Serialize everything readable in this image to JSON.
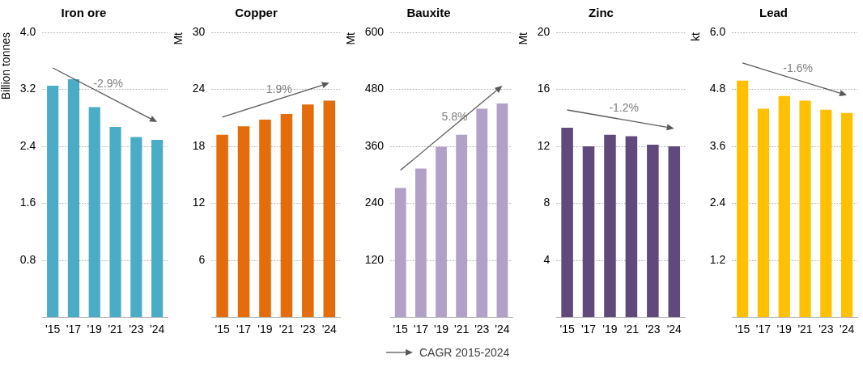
{
  "chart_data": [
    {
      "type": "bar",
      "title": "Iron ore",
      "ylabel": "Billion tonnes",
      "categories": [
        "'15",
        "'17",
        "'19",
        "'21",
        "'23",
        "'24"
      ],
      "values": [
        3.25,
        3.34,
        2.95,
        2.67,
        2.53,
        2.49
      ],
      "color": "#4bacc6",
      "ylim": [
        0,
        4
      ],
      "yticks": [
        0.8,
        1.6,
        2.4,
        3.2,
        {
          "value": 4,
          "label": "4.0"
        }
      ],
      "grid": "y",
      "annotations": [
        "-2.9%"
      ]
    },
    {
      "type": "bar",
      "title": "Copper",
      "ylabel": "Mt",
      "categories": [
        "'15",
        "'17",
        "'19",
        "'21",
        "'23",
        "'24"
      ],
      "values": [
        19.2,
        20.1,
        20.8,
        21.4,
        22.4,
        22.8
      ],
      "color": "#e46c0a",
      "ylim": [
        0,
        30
      ],
      "yticks": [
        6,
        12,
        18,
        24,
        30
      ],
      "grid": "y",
      "annotations": [
        "1.9%"
      ]
    },
    {
      "type": "bar",
      "title": "Bauxite",
      "ylabel": "Mt",
      "categories": [
        "'15",
        "'17",
        "'19",
        "'21",
        "'23",
        "'24"
      ],
      "values": [
        272,
        313,
        359,
        384,
        439,
        450
      ],
      "color": "#b2a1c7",
      "ylim": [
        0,
        600
      ],
      "yticks": [
        120,
        240,
        360,
        480,
        600
      ],
      "grid": "y",
      "annotations": [
        "5.8%",
        "CAGR 2015-2024"
      ]
    },
    {
      "type": "bar",
      "title": "Zinc",
      "ylabel": "Mt",
      "categories": [
        "'15",
        "'17",
        "'19",
        "'21",
        "'23",
        "'24"
      ],
      "values": [
        13.3,
        12.0,
        12.8,
        12.7,
        12.1,
        12.0
      ],
      "color": "#604a7b",
      "ylim": [
        0,
        20
      ],
      "yticks": [
        4,
        8,
        12,
        16,
        20
      ],
      "grid": "y",
      "annotations": [
        "-1.2%"
      ]
    },
    {
      "type": "bar",
      "title": "Lead",
      "ylabel": "kt",
      "categories": [
        "'15",
        "'17",
        "'19",
        "'21",
        "'23",
        "'24"
      ],
      "values": [
        4.98,
        4.39,
        4.66,
        4.56,
        4.37,
        4.3
      ],
      "color": "#ffc000",
      "ylim": [
        0,
        6
      ],
      "yticks": [
        1.2,
        2.4,
        3.6,
        4.8,
        {
          "value": 6,
          "label": "6.0"
        }
      ],
      "grid": "y",
      "annotations": [
        "-1.6%"
      ]
    }
  ]
}
